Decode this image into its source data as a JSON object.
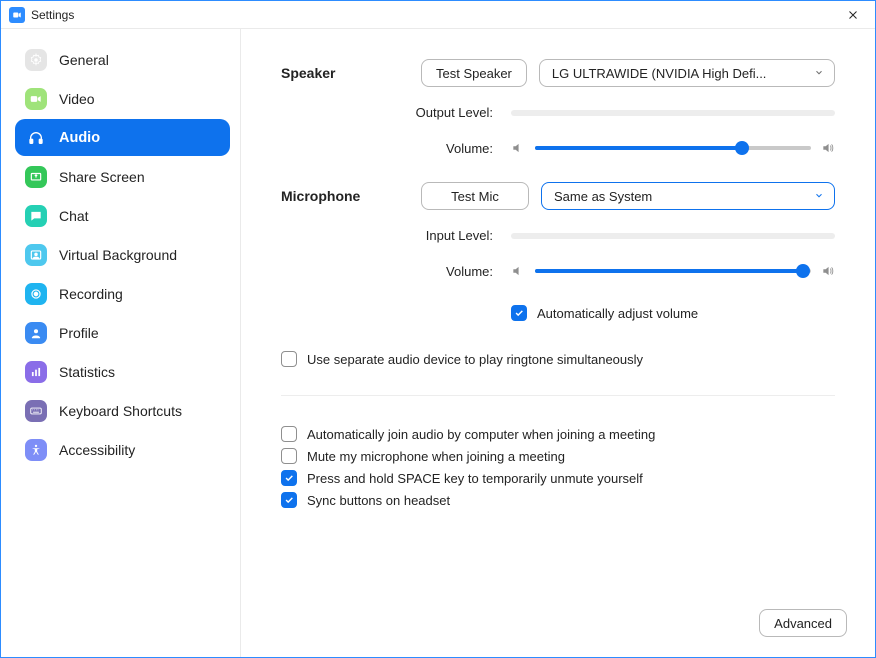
{
  "window": {
    "title": "Settings"
  },
  "sidebar": {
    "items": [
      {
        "label": "General",
        "icon": "gear",
        "bg": "#e5e5e5",
        "fg": "#ffffff"
      },
      {
        "label": "Video",
        "icon": "video",
        "bg": "#9fe37a",
        "fg": "#ffffff"
      },
      {
        "label": "Audio",
        "icon": "headphones",
        "bg": "transparent",
        "fg": "#ffffff",
        "active": true
      },
      {
        "label": "Share Screen",
        "icon": "share",
        "bg": "#34c759",
        "fg": "#ffffff"
      },
      {
        "label": "Chat",
        "icon": "chat",
        "bg": "#25d0b4",
        "fg": "#ffffff"
      },
      {
        "label": "Virtual Background",
        "icon": "vbg",
        "bg": "#4ec8ee",
        "fg": "#ffffff"
      },
      {
        "label": "Recording",
        "icon": "record",
        "bg": "#1fb4f0",
        "fg": "#ffffff"
      },
      {
        "label": "Profile",
        "icon": "profile",
        "bg": "#3a8bf2",
        "fg": "#ffffff"
      },
      {
        "label": "Statistics",
        "icon": "stats",
        "bg": "#8a6de8",
        "fg": "#ffffff"
      },
      {
        "label": "Keyboard Shortcuts",
        "icon": "keyboard",
        "bg": "#7a6fb4",
        "fg": "#ffffff"
      },
      {
        "label": "Accessibility",
        "icon": "access",
        "bg": "#7e8ef7",
        "fg": "#ffffff"
      }
    ]
  },
  "audio": {
    "speaker": {
      "title": "Speaker",
      "test_label": "Test Speaker",
      "device": "LG ULTRAWIDE (NVIDIA High Defi...",
      "output_level_label": "Output Level:",
      "volume_label": "Volume:",
      "volume_percent": 75
    },
    "microphone": {
      "title": "Microphone",
      "test_label": "Test Mic",
      "device": "Same as System",
      "input_level_label": "Input Level:",
      "volume_label": "Volume:",
      "volume_percent": 97,
      "auto_adjust_label": "Automatically adjust volume",
      "auto_adjust_checked": true
    },
    "separate_ringtone": {
      "label": "Use separate audio device to play ringtone simultaneously",
      "checked": false
    },
    "options": [
      {
        "label": "Automatically join audio by computer when joining a meeting",
        "checked": false
      },
      {
        "label": "Mute my microphone when joining a meeting",
        "checked": false
      },
      {
        "label": "Press and hold SPACE key to temporarily unmute yourself",
        "checked": true
      },
      {
        "label": "Sync buttons on headset",
        "checked": true
      }
    ],
    "advanced_label": "Advanced"
  },
  "colors": {
    "accent": "#0E72ED",
    "track": "#c9c9c9",
    "level_bg": "#ededed"
  }
}
